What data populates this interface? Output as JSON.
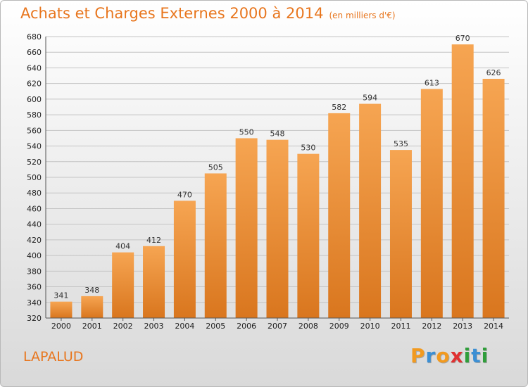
{
  "chart_data": {
    "type": "bar",
    "title": "Achats et Charges Externes 2000 à 2014",
    "subtitle": "(en milliers d'€)",
    "categories": [
      "2000",
      "2001",
      "2002",
      "2003",
      "2004",
      "2005",
      "2006",
      "2007",
      "2008",
      "2009",
      "2010",
      "2011",
      "2012",
      "2013",
      "2014"
    ],
    "values": [
      341,
      348,
      404,
      412,
      470,
      505,
      550,
      548,
      530,
      582,
      594,
      535,
      613,
      670,
      626
    ],
    "ylim": [
      320,
      680
    ],
    "yticks": [
      320,
      340,
      360,
      380,
      400,
      420,
      440,
      460,
      480,
      500,
      520,
      540,
      560,
      580,
      600,
      620,
      640,
      660,
      680
    ],
    "grid": true,
    "bar_color_top": "#f6a552",
    "bar_color_bottom": "#d9761e"
  },
  "footer": {
    "place": "LAPALUD",
    "logo_letters": [
      "P",
      "r",
      "o",
      "x",
      "i",
      "t",
      "i"
    ],
    "logo_colors": [
      "#f29a1f",
      "#3b8fd4",
      "#f29a1f",
      "#e03030",
      "#2f9e3a",
      "#3b8fd4",
      "#2f9e3a"
    ]
  }
}
